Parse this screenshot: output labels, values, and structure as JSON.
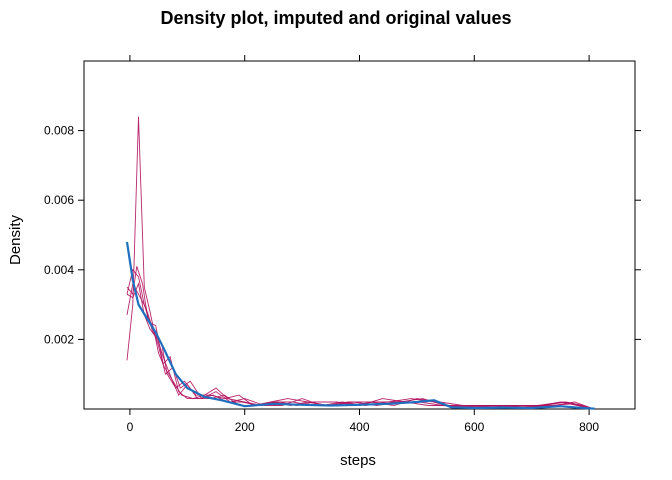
{
  "chart_data": {
    "type": "line",
    "title": "Density plot, imputed and original values",
    "xlabel": "steps",
    "ylabel": "Density",
    "xlim": [
      -80,
      880
    ],
    "ylim": [
      0,
      0.01
    ],
    "xticks": [
      0,
      200,
      400,
      600,
      800
    ],
    "xtick_labels": [
      "0",
      "200",
      "400",
      "600",
      "800"
    ],
    "yticks": [
      0.002,
      0.004,
      0.006,
      0.008
    ],
    "ytick_labels": [
      "0.002",
      "0.004",
      "0.006",
      "0.008"
    ],
    "grid": false,
    "colors": {
      "original": "#1f6fbf",
      "imputed": "#b0105c"
    },
    "series": [
      {
        "role": "original",
        "x": [
          -5,
          5,
          15,
          30,
          45,
          60,
          80,
          100,
          130,
          160,
          200,
          250,
          300,
          350,
          400,
          450,
          500,
          530,
          560,
          600,
          650,
          700,
          750,
          780,
          810
        ],
        "values": [
          0.0048,
          0.0037,
          0.003,
          0.0026,
          0.0022,
          0.0017,
          0.001,
          0.0006,
          0.00035,
          0.00025,
          8e-05,
          0.00015,
          0.00012,
          0.0001,
          0.00012,
          0.00015,
          0.0002,
          0.00025,
          5e-05,
          3e-05,
          4e-05,
          3e-05,
          8e-05,
          4e-05,
          1e-05
        ]
      },
      {
        "role": "imputed",
        "x": [
          -5,
          5,
          15,
          25,
          35,
          50,
          60,
          75,
          90,
          110,
          130,
          150,
          170,
          200,
          230,
          260,
          290,
          320,
          360,
          400,
          440,
          480,
          520,
          560,
          600,
          650,
          700,
          750,
          780,
          800
        ],
        "values": [
          0.0014,
          0.003,
          0.0084,
          0.0035,
          0.0028,
          0.0016,
          0.0012,
          0.0008,
          0.0004,
          0.0003,
          0.0004,
          0.0006,
          0.0003,
          0.0002,
          0.0001,
          0.0002,
          0.0001,
          0.0002,
          0.0002,
          0.0001,
          0.0003,
          0.0002,
          0.0001,
          0.0001,
          5e-05,
          0.0001,
          5e-05,
          0.0002,
          0.0001,
          2e-05
        ]
      },
      {
        "role": "imputed",
        "x": [
          -5,
          5,
          15,
          25,
          40,
          55,
          65,
          80,
          95,
          115,
          140,
          165,
          190,
          215,
          245,
          275,
          310,
          345,
          380,
          420,
          460,
          500,
          540,
          580,
          620,
          670,
          720,
          760,
          790,
          805
        ],
        "values": [
          0.0033,
          0.004,
          0.0038,
          0.003,
          0.0022,
          0.0019,
          0.001,
          0.0006,
          0.0008,
          0.0004,
          0.0004,
          0.0003,
          0.0004,
          0.0001,
          0.0002,
          0.0003,
          0.0002,
          0.0001,
          0.0002,
          0.0002,
          0.0001,
          0.0003,
          0.0002,
          0.0001,
          0.0001,
          5e-05,
          0.0001,
          0.0002,
          0.0001,
          2e-05
        ]
      },
      {
        "role": "imputed",
        "x": [
          -5,
          5,
          12,
          22,
          32,
          45,
          58,
          70,
          85,
          100,
          120,
          145,
          170,
          195,
          225,
          255,
          285,
          315,
          350,
          390,
          430,
          470,
          510,
          550,
          590,
          640,
          690,
          740,
          775,
          805
        ],
        "values": [
          0.0035,
          0.0033,
          0.0041,
          0.0036,
          0.0025,
          0.0024,
          0.0013,
          0.0015,
          0.0005,
          0.0003,
          0.0003,
          0.0004,
          0.0002,
          0.0002,
          0.0001,
          0.0002,
          0.0002,
          0.0001,
          0.0001,
          0.0002,
          0.0001,
          0.0002,
          0.0003,
          0.0001,
          0.0001,
          0.0001,
          5e-05,
          0.0001,
          0.0002,
          2e-05
        ]
      },
      {
        "role": "imputed",
        "x": [
          -5,
          5,
          15,
          28,
          38,
          50,
          62,
          75,
          88,
          105,
          125,
          150,
          175,
          200,
          235,
          265,
          300,
          335,
          370,
          410,
          450,
          490,
          530,
          570,
          610,
          660,
          710,
          755,
          785,
          805
        ],
        "values": [
          0.0027,
          0.0036,
          0.0033,
          0.0029,
          0.0024,
          0.0018,
          0.001,
          0.0012,
          0.0006,
          0.0008,
          0.0003,
          0.0005,
          0.0002,
          0.0003,
          0.0001,
          0.0001,
          0.0003,
          0.0001,
          0.0002,
          0.0001,
          0.0002,
          0.0003,
          0.0002,
          5e-05,
          0.0001,
          0.0001,
          0.0001,
          0.0002,
          0.0001,
          2e-05
        ]
      },
      {
        "role": "imputed",
        "x": [
          -5,
          5,
          15,
          25,
          35,
          48,
          60,
          72,
          85,
          100,
          118,
          140,
          165,
          190,
          220,
          250,
          280,
          310,
          345,
          385,
          425,
          465,
          505,
          545,
          585,
          635,
          685,
          735,
          770,
          800
        ],
        "values": [
          0.0033,
          0.0032,
          0.0036,
          0.0027,
          0.0023,
          0.002,
          0.0014,
          0.0009,
          0.0004,
          0.0007,
          0.0003,
          0.0003,
          0.0004,
          0.0001,
          0.0001,
          0.0002,
          0.0001,
          0.0002,
          0.0001,
          0.0001,
          0.0002,
          0.0002,
          0.0002,
          0.0001,
          5e-05,
          0.0001,
          0.0001,
          0.0001,
          0.00015,
          2e-05
        ]
      }
    ]
  }
}
